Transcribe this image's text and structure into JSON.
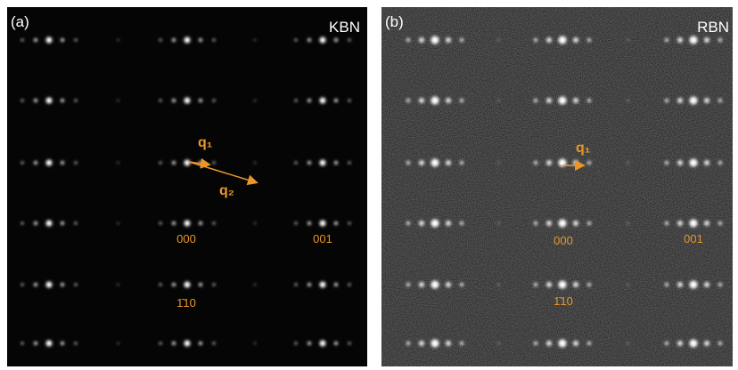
{
  "panels": [
    {
      "label": "(a)",
      "name": "KBN",
      "q1": "q₁",
      "q2": "q₂",
      "spot_000": "000",
      "spot_001": "001",
      "spot_110": "1̄10"
    },
    {
      "label": "(b)",
      "name": "RBN",
      "q1": "q₁",
      "spot_000": "000",
      "spot_001": "001",
      "spot_110": "1̄10"
    }
  ]
}
